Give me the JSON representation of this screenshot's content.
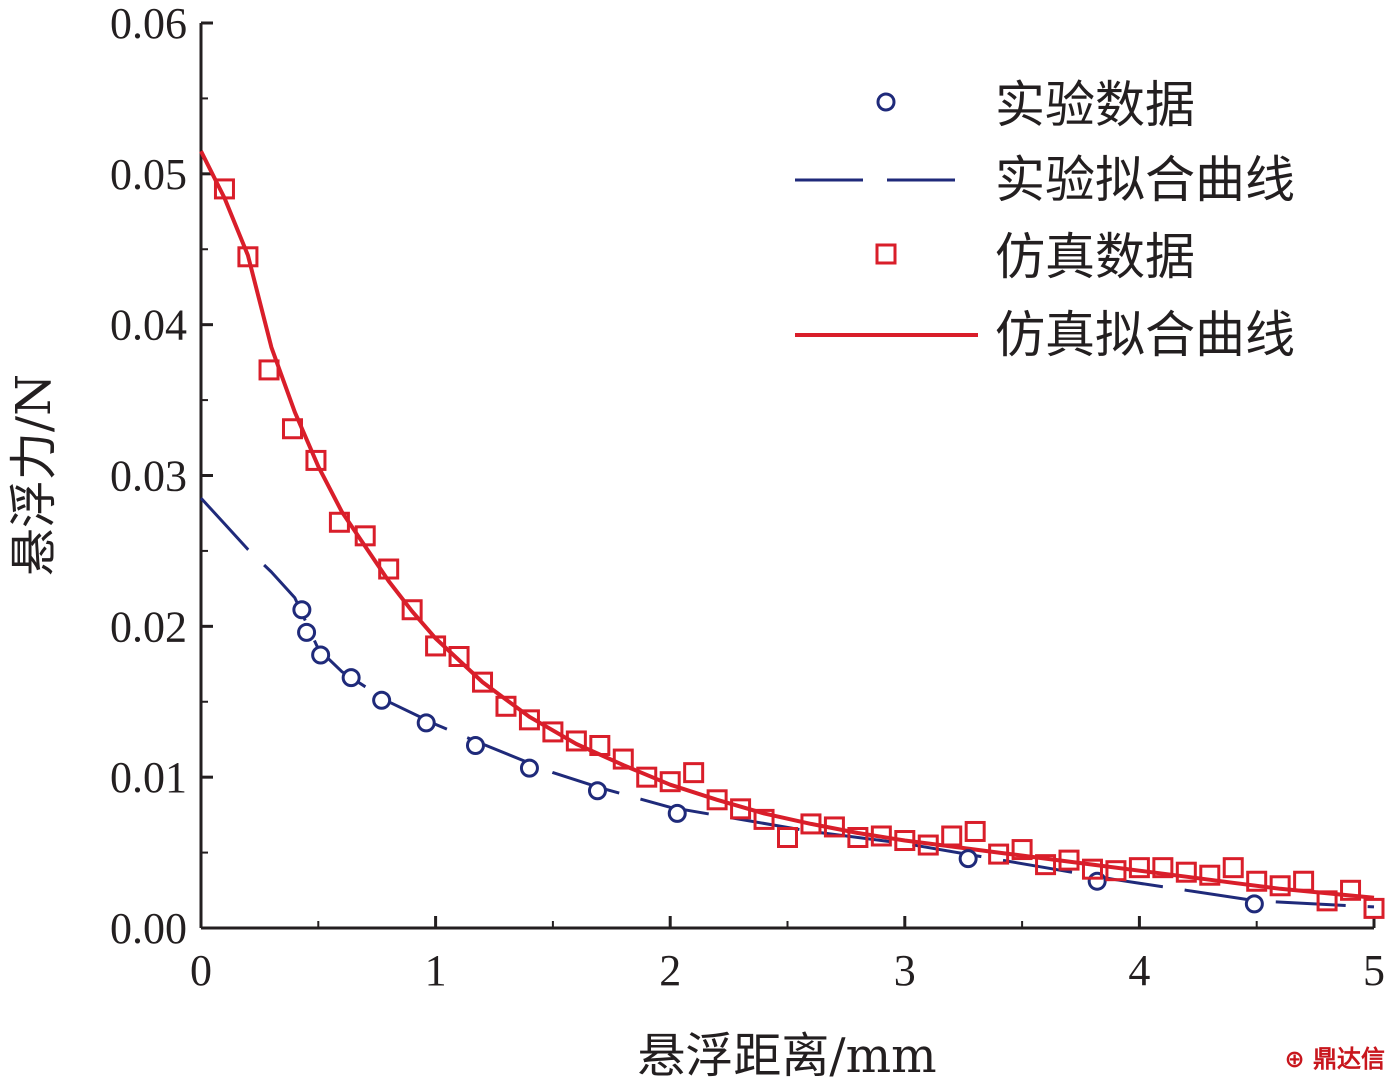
{
  "chart_data": {
    "type": "scatter",
    "xlabel": "悬浮距离/mm",
    "ylabel": "悬浮力/N",
    "xlim": [
      0,
      5
    ],
    "ylim": [
      0,
      0.06
    ],
    "x_ticks": [
      "0",
      "1",
      "2",
      "3",
      "4",
      "5"
    ],
    "y_ticks": [
      "0.00",
      "0.01",
      "0.02",
      "0.03",
      "0.04",
      "0.05",
      "0.06"
    ],
    "grid": false,
    "legend_position": "top-right",
    "series": [
      {
        "name": "实验数据",
        "kind": "scatter",
        "marker": "circle",
        "color": "#1f2a7a",
        "points": [
          [
            0.43,
            0.0211
          ],
          [
            0.45,
            0.0196
          ],
          [
            0.51,
            0.0181
          ],
          [
            0.64,
            0.0166
          ],
          [
            0.77,
            0.0151
          ],
          [
            0.96,
            0.0136
          ],
          [
            1.17,
            0.0121
          ],
          [
            1.4,
            0.0106
          ],
          [
            1.69,
            0.0091
          ],
          [
            2.03,
            0.0076
          ],
          [
            3.27,
            0.0046
          ],
          [
            3.82,
            0.0031
          ],
          [
            4.49,
            0.0016
          ]
        ]
      },
      {
        "name": "实验拟合曲线",
        "kind": "dashed-line",
        "color": "#1f2a7a",
        "points": [
          [
            0.0,
            0.0285
          ],
          [
            0.1,
            0.0268
          ],
          [
            0.2,
            0.0251
          ],
          [
            0.3,
            0.0236
          ],
          [
            0.4,
            0.0219
          ],
          [
            0.5,
            0.0185
          ],
          [
            0.6,
            0.017
          ],
          [
            0.8,
            0.015
          ],
          [
            1.0,
            0.0135
          ],
          [
            1.2,
            0.0122
          ],
          [
            1.5,
            0.0103
          ],
          [
            1.7,
            0.0093
          ],
          [
            2.0,
            0.008
          ],
          [
            2.3,
            0.0072
          ],
          [
            2.6,
            0.0064
          ],
          [
            3.0,
            0.0056
          ],
          [
            3.3,
            0.0048
          ],
          [
            3.6,
            0.004
          ],
          [
            3.9,
            0.0032
          ],
          [
            4.2,
            0.0025
          ],
          [
            4.5,
            0.0018
          ],
          [
            5.0,
            0.0014
          ]
        ]
      },
      {
        "name": "仿真数据",
        "kind": "scatter",
        "marker": "square",
        "color": "#d91e2a",
        "points": [
          [
            0.1,
            0.049
          ],
          [
            0.2,
            0.0445
          ],
          [
            0.29,
            0.037
          ],
          [
            0.39,
            0.0331
          ],
          [
            0.49,
            0.031
          ],
          [
            0.59,
            0.0269
          ],
          [
            0.7,
            0.026
          ],
          [
            0.8,
            0.0238
          ],
          [
            0.9,
            0.0211
          ],
          [
            1.0,
            0.0187
          ],
          [
            1.1,
            0.018
          ],
          [
            1.2,
            0.0163
          ],
          [
            1.3,
            0.0147
          ],
          [
            1.4,
            0.0138
          ],
          [
            1.5,
            0.013
          ],
          [
            1.6,
            0.0124
          ],
          [
            1.7,
            0.0121
          ],
          [
            1.8,
            0.0112
          ],
          [
            1.9,
            0.01
          ],
          [
            2.0,
            0.0097
          ],
          [
            2.1,
            0.0103
          ],
          [
            2.2,
            0.0085
          ],
          [
            2.3,
            0.0079
          ],
          [
            2.4,
            0.0072
          ],
          [
            2.5,
            0.006
          ],
          [
            2.6,
            0.0069
          ],
          [
            2.7,
            0.0067
          ],
          [
            2.8,
            0.006
          ],
          [
            2.9,
            0.0061
          ],
          [
            3.0,
            0.0058
          ],
          [
            3.1,
            0.0055
          ],
          [
            3.2,
            0.0061
          ],
          [
            3.3,
            0.0064
          ],
          [
            3.4,
            0.0049
          ],
          [
            3.5,
            0.0052
          ],
          [
            3.6,
            0.0042
          ],
          [
            3.7,
            0.0045
          ],
          [
            3.8,
            0.0039
          ],
          [
            3.9,
            0.0038
          ],
          [
            4.0,
            0.004
          ],
          [
            4.1,
            0.004
          ],
          [
            4.2,
            0.0037
          ],
          [
            4.3,
            0.0035
          ],
          [
            4.4,
            0.004
          ],
          [
            4.5,
            0.0031
          ],
          [
            4.6,
            0.0028
          ],
          [
            4.7,
            0.0031
          ],
          [
            4.8,
            0.0018
          ],
          [
            4.9,
            0.0025
          ],
          [
            5.0,
            0.0013
          ]
        ]
      },
      {
        "name": "仿真拟合曲线",
        "kind": "solid-line",
        "color": "#d91e2a",
        "points": [
          [
            0.0,
            0.0515
          ],
          [
            0.1,
            0.0484
          ],
          [
            0.2,
            0.0446
          ],
          [
            0.3,
            0.0385
          ],
          [
            0.4,
            0.0342
          ],
          [
            0.5,
            0.0306
          ],
          [
            0.6,
            0.0276
          ],
          [
            0.7,
            0.0253
          ],
          [
            0.8,
            0.023
          ],
          [
            0.9,
            0.021
          ],
          [
            1.0,
            0.0192
          ],
          [
            1.2,
            0.0163
          ],
          [
            1.4,
            0.014
          ],
          [
            1.6,
            0.0122
          ],
          [
            1.8,
            0.0108
          ],
          [
            2.0,
            0.0095
          ],
          [
            2.2,
            0.0085
          ],
          [
            2.4,
            0.0076
          ],
          [
            2.6,
            0.0069
          ],
          [
            2.8,
            0.0063
          ],
          [
            3.0,
            0.0058
          ],
          [
            3.2,
            0.0054
          ],
          [
            3.4,
            0.005
          ],
          [
            3.6,
            0.0046
          ],
          [
            3.8,
            0.0042
          ],
          [
            4.0,
            0.0038
          ],
          [
            4.2,
            0.0034
          ],
          [
            4.4,
            0.003
          ],
          [
            4.6,
            0.0026
          ],
          [
            4.8,
            0.0023
          ],
          [
            5.0,
            0.002
          ]
        ]
      }
    ]
  },
  "watermark_text": "鼎达信"
}
